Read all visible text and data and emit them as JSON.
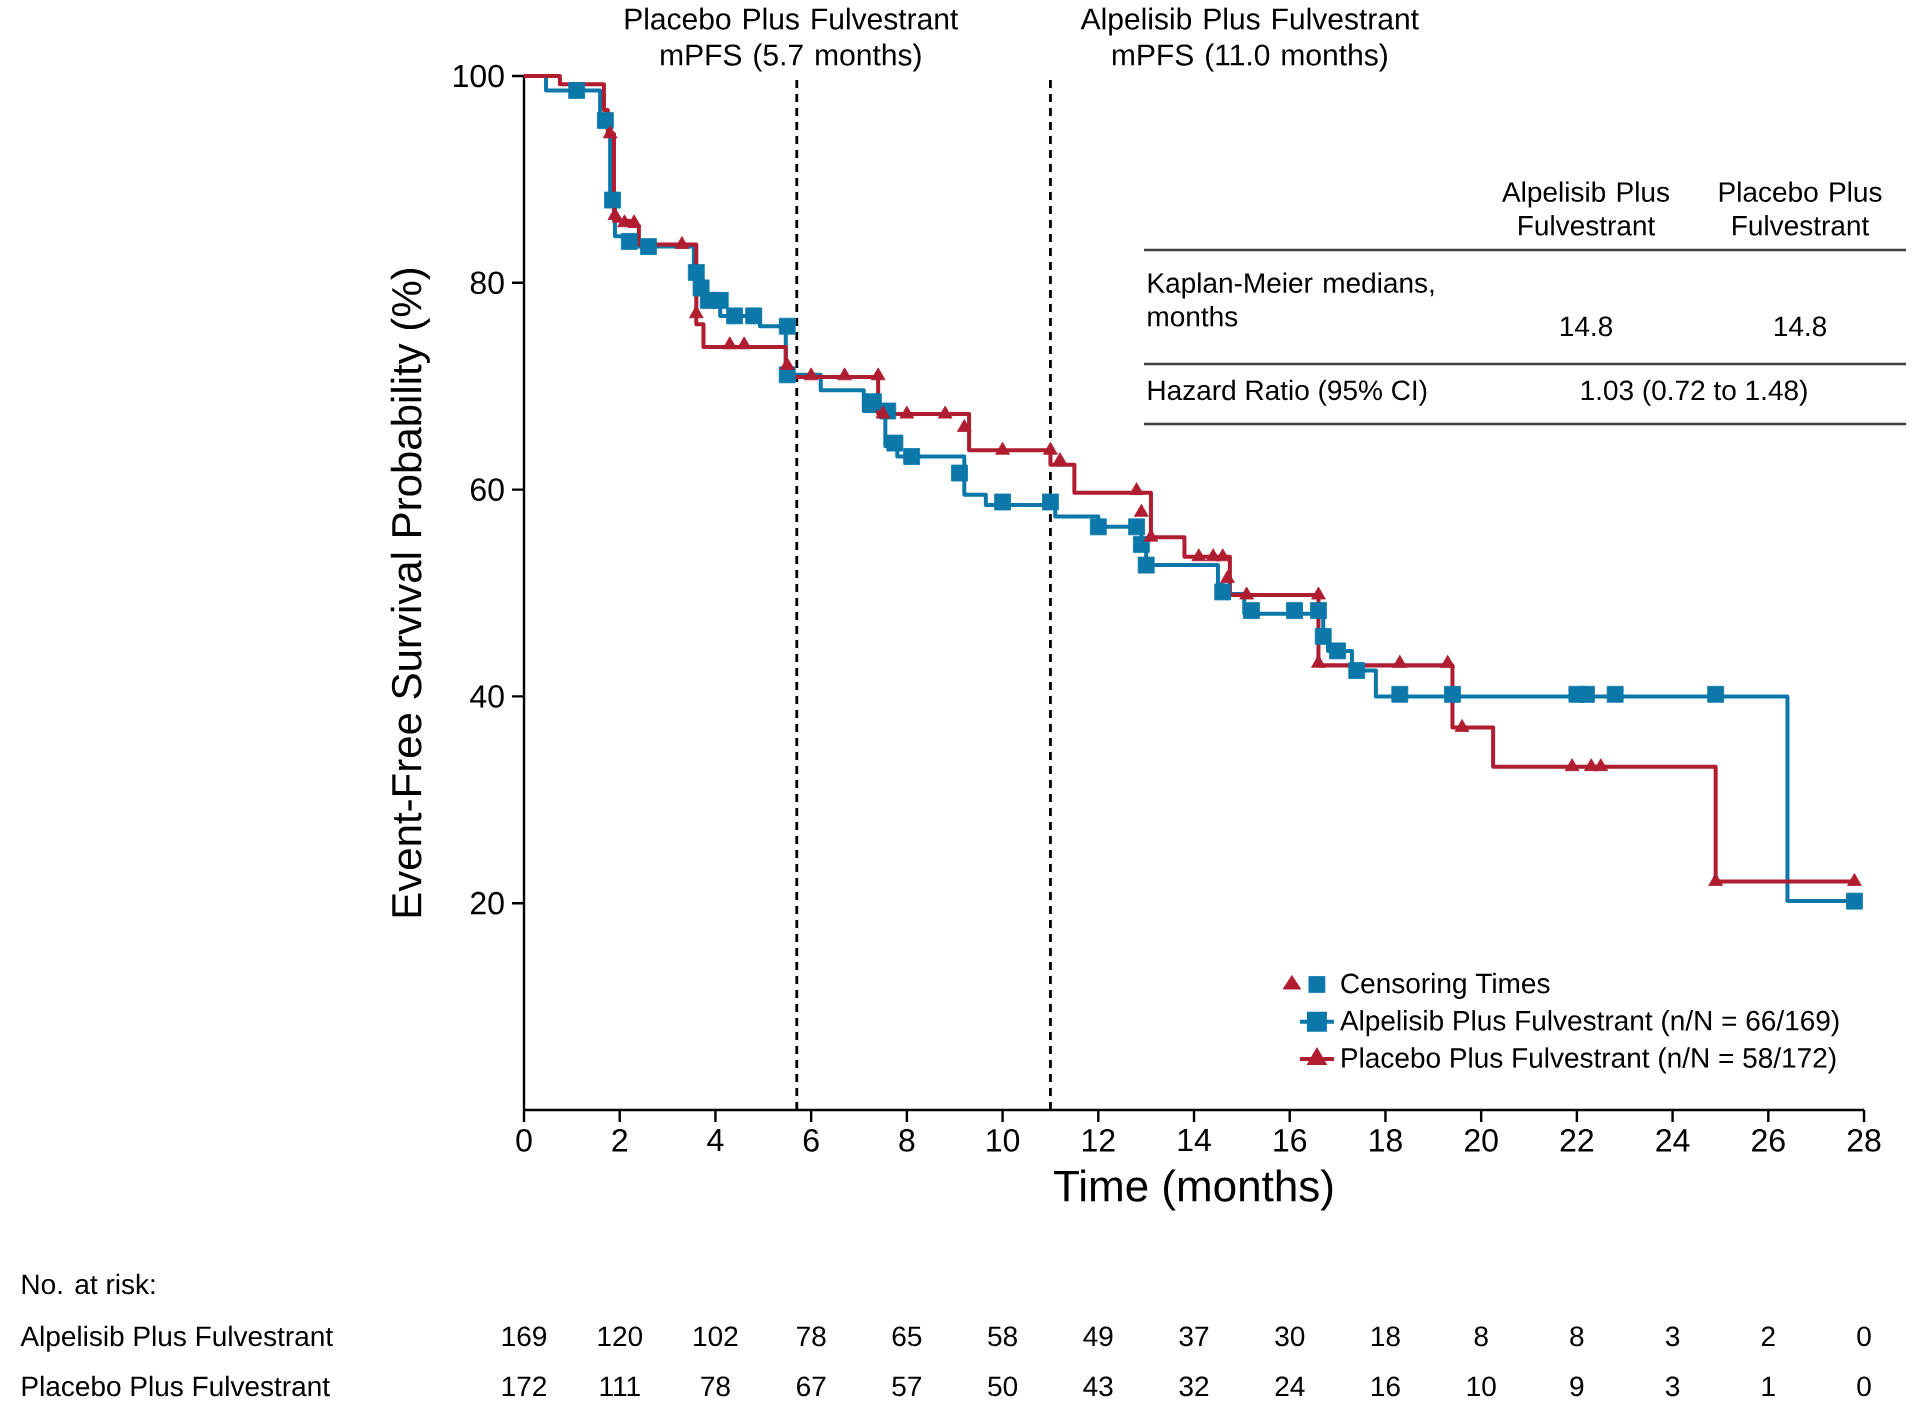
{
  "chart_data": {
    "type": "step",
    "xlabel": "Time (months)",
    "ylabel": "Event-Free Survival Probability (%)",
    "xlim": [
      0,
      28
    ],
    "ylim": [
      0,
      100
    ],
    "xticks": [
      0,
      2,
      4,
      6,
      8,
      10,
      12,
      14,
      16,
      18,
      20,
      22,
      24,
      26,
      28
    ],
    "yticks": [
      20,
      40,
      60,
      80,
      100
    ],
    "legend": "bottom right",
    "series": [
      {
        "name": "Censoring Times",
        "type": "scatter",
        "marker": "square",
        "color": "#0b78a9",
        "x": [
          1.1,
          1.7,
          1.85,
          2.2,
          2.6,
          3.6,
          3.7,
          3.85,
          4.1,
          4.4,
          4.8,
          5.5,
          5.5,
          7.3,
          7.6,
          7.75,
          8.1,
          9.1,
          10.0,
          11.0,
          12.0,
          12.8,
          12.9,
          13.0,
          14.6,
          15.2,
          16.1,
          16.6,
          16.7,
          17.0,
          17.4,
          18.3,
          19.4,
          22.0,
          22.2,
          22.8,
          24.9,
          27.8
        ],
        "values": [
          98.6,
          95.7,
          88,
          84,
          83.5,
          81,
          79.5,
          78.3,
          78.3,
          76.8,
          76.8,
          75.8,
          71.1,
          68.5,
          67.6,
          64.5,
          63.2,
          61.6,
          58.8,
          58.8,
          56.4,
          56.4,
          54.7,
          52.7,
          50.1,
          48.3,
          48.3,
          48.3,
          45.8,
          44.4,
          42.5,
          40.2,
          40.2,
          40.2,
          40.2,
          40.2,
          40.2,
          20.2
        ]
      },
      {
        "type": "scatter",
        "marker": "triangle",
        "color": "#b01c30",
        "x": [
          1.8,
          1.9,
          2.1,
          2.3,
          3.3,
          3.6,
          4.3,
          4.6,
          5.5,
          6.0,
          6.7,
          7.4,
          7.5,
          8.0,
          8.8,
          9.2,
          10.0,
          11.0,
          11.2,
          12.8,
          12.9,
          13.1,
          14.1,
          14.4,
          14.6,
          14.7,
          15.1,
          16.6,
          16.6,
          18.3,
          19.3,
          19.6,
          21.9,
          22.3,
          22.5,
          24.9,
          27.8
        ],
        "values": [
          94.4,
          86.5,
          85.8,
          85.8,
          83.7,
          77,
          74,
          74,
          72,
          71,
          71,
          71,
          67.3,
          67.3,
          67.3,
          66,
          63.8,
          63.8,
          62.8,
          59.9,
          57.8,
          55.4,
          53.5,
          53.5,
          53.5,
          51.4,
          49.8,
          49.8,
          43.2,
          43.2,
          43.2,
          37,
          33.2,
          33.2,
          33.2,
          22.1,
          22.1
        ]
      },
      {
        "name": "Alpelisib Plus Fulvestrant (n/N = 66/169)",
        "color": "#0b78a9",
        "x": [
          0,
          0.46,
          1.59,
          1.8,
          1.9,
          2.2,
          3.55,
          3.7,
          4.1,
          4.93,
          5.47,
          6.2,
          7.1,
          7.55,
          7.8,
          9.2,
          9.65,
          11.1,
          12.0,
          12.9,
          13.0,
          14.5,
          14.6,
          15.05,
          16.7,
          16.8,
          17.3,
          17.8,
          26.4,
          27.8
        ],
        "values": [
          100,
          98.6,
          95.7,
          88,
          84.5,
          83.5,
          80.8,
          78.9,
          76.8,
          75.8,
          71.1,
          69.6,
          67.6,
          64.2,
          63.2,
          59.5,
          58.5,
          57.4,
          56.4,
          54.7,
          52.7,
          50.8,
          49.9,
          48.0,
          45.8,
          44.4,
          42.5,
          40.0,
          20.2,
          20.2
        ]
      },
      {
        "name": "Placebo Plus Fulvestrant (n/N = 58/172)",
        "color": "#b01c30",
        "x": [
          0,
          0.75,
          1.67,
          1.75,
          1.88,
          2.2,
          2.4,
          3.6,
          3.75,
          5.47,
          7.4,
          9.3,
          11.0,
          11.5,
          13.1,
          13.8,
          14.75,
          16.6,
          19.4,
          20.25,
          24.9,
          27.8
        ],
        "values": [
          100,
          99.2,
          96.7,
          94.4,
          86,
          85.5,
          83.7,
          76,
          73.8,
          70.9,
          67.3,
          63.8,
          62.4,
          59.7,
          55.4,
          53.5,
          49.8,
          43.0,
          37.0,
          33.2,
          22.1,
          22.1
        ]
      }
    ],
    "ref_lines": [
      {
        "axis": "x",
        "value": 5.7,
        "label": "Placebo Plus Fulvestrant mPFS (5.7 months)",
        "line_style": "dashed",
        "color": "#000000"
      },
      {
        "axis": "x",
        "value": 11.0,
        "label": "Alpelisib Plus Fulvestrant mPFS (11.0 months)",
        "line_style": "dashed",
        "color": "#000000"
      }
    ],
    "annotations": [
      "Alpelisib Plus Fulvestrant",
      "Placebo Plus Fulvestrant",
      "Kaplan-Meier medians, months",
      "14.8",
      "14.8",
      "Hazard Ratio (95% CI)",
      "1.03 (0.72 to 1.48)",
      "No. at risk:",
      "Alpelisib Plus Fulvestrant",
      "169",
      "120",
      "102",
      "78",
      "65",
      "58",
      "49",
      "37",
      "30",
      "18",
      "8",
      "8",
      "3",
      "2",
      "0",
      "Placebo Plus Fulvestrant",
      "172",
      "111",
      "78",
      "67",
      "57",
      "50",
      "43",
      "32",
      "24",
      "16",
      "10",
      "9",
      "3",
      "1",
      "0"
    ]
  }
}
